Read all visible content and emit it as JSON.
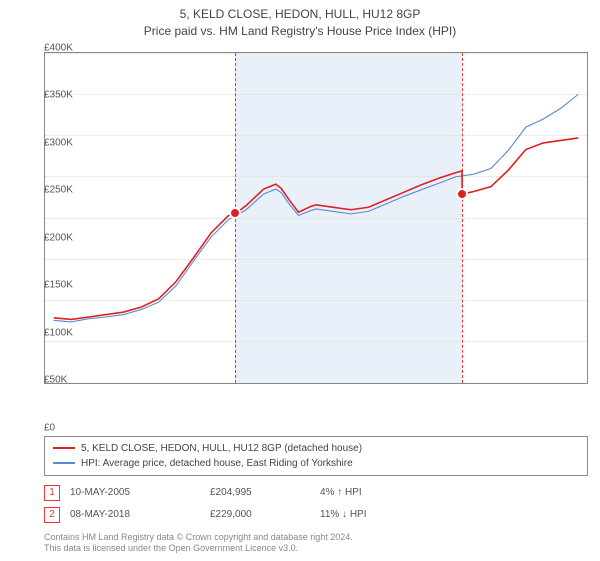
{
  "title": {
    "line1": "5, KELD CLOSE, HEDON, HULL, HU12 8GP",
    "line2": "Price paid vs. HM Land Registry's House Price Index (HPI)"
  },
  "chart": {
    "type": "line",
    "background_color": "#ffffff",
    "grid_color": "#dddddd",
    "axis_color": "#888888",
    "label_fontsize": 10,
    "label_color": "#555555",
    "x": {
      "min": 1994.5,
      "max": 2025.5,
      "ticks": [
        1995,
        1996,
        1997,
        1998,
        1999,
        2000,
        2001,
        2002,
        2003,
        2004,
        2005,
        2006,
        2007,
        2008,
        2009,
        2010,
        2011,
        2012,
        2013,
        2014,
        2015,
        2016,
        2017,
        2018,
        2019,
        2020,
        2021,
        2022,
        2023,
        2024,
        2025
      ]
    },
    "y": {
      "min": 0,
      "max": 400000,
      "ticks": [
        0,
        50000,
        100000,
        150000,
        200000,
        250000,
        300000,
        350000,
        400000
      ],
      "tick_labels": [
        "£0",
        "£50K",
        "£100K",
        "£150K",
        "£200K",
        "£250K",
        "£300K",
        "£350K",
        "£400K"
      ]
    },
    "shade_region": {
      "x_from": 2005.36,
      "x_to": 2018.35,
      "fill": "#e9f0f9"
    },
    "ref_lines": [
      {
        "n": "1",
        "x": 2005.36
      },
      {
        "n": "2",
        "x": 2018.35
      }
    ],
    "markers": [
      {
        "x": 2005.36,
        "y": 204995,
        "fill": "#e02020",
        "border": "#ffffff"
      },
      {
        "x": 2018.35,
        "y": 229000,
        "fill": "#e02020",
        "border": "#ffffff"
      }
    ],
    "series": [
      {
        "name": "property",
        "color": "#e02020",
        "width": 1.6,
        "label": "5, KELD CLOSE, HEDON, HULL, HU12 8GP (detached house)",
        "points": [
          [
            1995,
            79000
          ],
          [
            1996,
            77000
          ],
          [
            1997,
            80000
          ],
          [
            1998,
            83000
          ],
          [
            1999,
            86000
          ],
          [
            2000,
            92000
          ],
          [
            2001,
            102000
          ],
          [
            2002,
            123000
          ],
          [
            2003,
            152000
          ],
          [
            2004,
            182000
          ],
          [
            2005,
            203000
          ],
          [
            2005.36,
            204995
          ],
          [
            2006,
            215000
          ],
          [
            2007,
            235000
          ],
          [
            2007.7,
            241000
          ],
          [
            2008,
            236000
          ],
          [
            2008.5,
            221000
          ],
          [
            2009,
            207000
          ],
          [
            2009.7,
            214000
          ],
          [
            2010,
            216000
          ],
          [
            2011,
            213000
          ],
          [
            2012,
            210000
          ],
          [
            2013,
            213000
          ],
          [
            2014,
            222000
          ],
          [
            2015,
            231000
          ],
          [
            2016,
            240000
          ],
          [
            2017,
            248000
          ],
          [
            2018,
            255000
          ],
          [
            2018.35,
            257000
          ],
          [
            2018.36,
            229000
          ],
          [
            2019,
            232000
          ],
          [
            2020,
            238000
          ],
          [
            2021,
            258000
          ],
          [
            2022,
            283000
          ],
          [
            2023,
            291000
          ],
          [
            2024,
            294000
          ],
          [
            2025,
            297000
          ]
        ]
      },
      {
        "name": "hpi",
        "color": "#5a8ad0",
        "width": 1.1,
        "label": "HPI: Average price, detached house, East Riding of Yorkshire",
        "points": [
          [
            1995,
            76000
          ],
          [
            1996,
            74000
          ],
          [
            1997,
            78000
          ],
          [
            1998,
            80000
          ],
          [
            1999,
            83000
          ],
          [
            2000,
            89000
          ],
          [
            2001,
            98000
          ],
          [
            2002,
            118000
          ],
          [
            2003,
            148000
          ],
          [
            2004,
            177000
          ],
          [
            2005,
            198000
          ],
          [
            2006,
            210000
          ],
          [
            2007,
            229000
          ],
          [
            2007.7,
            235000
          ],
          [
            2008,
            231000
          ],
          [
            2008.5,
            216000
          ],
          [
            2009,
            203000
          ],
          [
            2009.7,
            209000
          ],
          [
            2010,
            211000
          ],
          [
            2011,
            208000
          ],
          [
            2012,
            205000
          ],
          [
            2013,
            208000
          ],
          [
            2014,
            217000
          ],
          [
            2015,
            226000
          ],
          [
            2016,
            234000
          ],
          [
            2017,
            242000
          ],
          [
            2018,
            250000
          ],
          [
            2019,
            253000
          ],
          [
            2020,
            260000
          ],
          [
            2021,
            282000
          ],
          [
            2022,
            310000
          ],
          [
            2023,
            320000
          ],
          [
            2024,
            333000
          ],
          [
            2025,
            350000
          ]
        ]
      }
    ]
  },
  "legend": {
    "rows": [
      {
        "color": "#e02020",
        "label": "5, KELD CLOSE, HEDON, HULL, HU12 8GP (detached house)"
      },
      {
        "color": "#5a8ad0",
        "label": "HPI: Average price, detached house, East Riding of Yorkshire"
      }
    ]
  },
  "sales": [
    {
      "n": "1",
      "date": "10-MAY-2005",
      "price": "£204,995",
      "delta": "4% ↑ HPI"
    },
    {
      "n": "2",
      "date": "08-MAY-2018",
      "price": "£229,000",
      "delta": "11% ↓ HPI"
    }
  ],
  "footer": {
    "line1": "Contains HM Land Registry data © Crown copyright and database right 2024.",
    "line2": "This data is licensed under the Open Government Licence v3.0."
  }
}
